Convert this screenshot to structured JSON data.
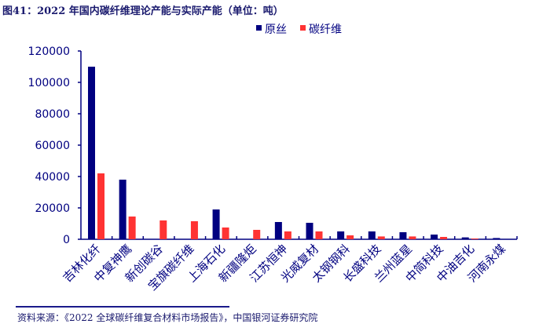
{
  "title": "图41：2022 年国内碳纤维理论产能与实际产能（单位：吨）",
  "source": "资料来源：《2022 全球碳纤维复合材料市场报告》，中国银河证券研究院",
  "colors": {
    "axis": "#000080",
    "theory": "#000080",
    "actual": "#FF3333",
    "text": "#000080"
  },
  "chart_data": {
    "type": "bar",
    "title": "",
    "xlabel": "",
    "ylabel": "",
    "ylim": [
      0,
      120000
    ],
    "yticks": [
      "0",
      "20000",
      "40000",
      "60000",
      "80000",
      "100000",
      "120000"
    ],
    "legend_position": "top",
    "categories": [
      "吉林化纤",
      "中复神鹰",
      "新创碳谷",
      "宝旗碳纤维",
      "上海石化",
      "新疆隆炬",
      "江苏恒神",
      "光威复材",
      "太钢钢科",
      "长盛科技",
      "兰州蓝星",
      "中简科技",
      "中油吉化",
      "河南永煤"
    ],
    "series": [
      {
        "name": "原丝",
        "values": [
          110000,
          38000,
          0,
          0,
          19000,
          0,
          11000,
          10500,
          5000,
          5000,
          4500,
          3000,
          1200,
          800
        ]
      },
      {
        "name": "碳纤维",
        "values": [
          42000,
          14500,
          12000,
          11500,
          7500,
          6000,
          5000,
          5000,
          2500,
          1800,
          1800,
          1500,
          500,
          0
        ]
      }
    ]
  }
}
